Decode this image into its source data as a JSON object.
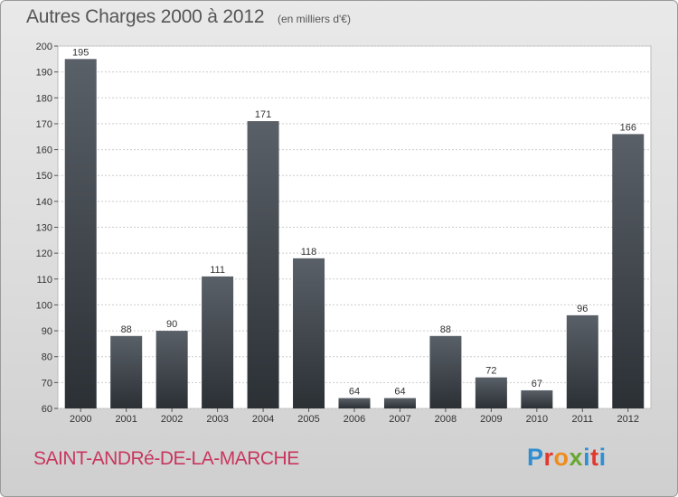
{
  "header": {
    "title": "Autres Charges 2000 à 2012",
    "unit": "(en milliers d'€)"
  },
  "footer": {
    "commune": "SAINT-ANDRé-DE-LA-MARCHE",
    "logo_text": "Proxiti"
  },
  "colors": {
    "bar_top": "#5a6068",
    "bar_bottom": "#2b3035",
    "grid": "#cccccc",
    "commune_text": "#c8375f"
  },
  "chart_data": {
    "type": "bar",
    "categories": [
      "2000",
      "2001",
      "2002",
      "2003",
      "2004",
      "2005",
      "2006",
      "2007",
      "2008",
      "2009",
      "2010",
      "2011",
      "2012"
    ],
    "values": [
      195,
      88,
      90,
      111,
      171,
      118,
      64,
      64,
      88,
      72,
      67,
      96,
      166
    ],
    "ylim": [
      60,
      200
    ],
    "yticks": [
      60,
      70,
      80,
      90,
      100,
      110,
      120,
      130,
      140,
      150,
      160,
      170,
      180,
      190,
      200
    ],
    "grid": true
  }
}
